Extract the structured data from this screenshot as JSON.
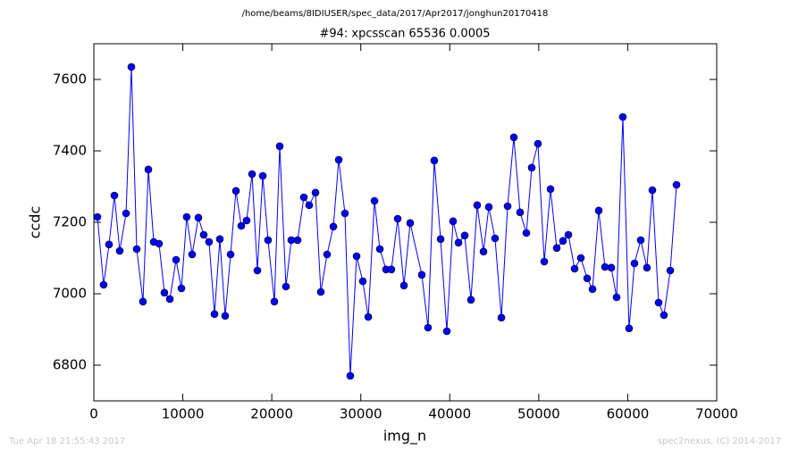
{
  "chart_data": {
    "type": "line",
    "suptitle": "/home/beams/8IDIUSER/spec_data/2017/Apr2017/jonghun20170418",
    "title": "#94: xpcsscan 65536 0.0005",
    "xlabel": "img_n",
    "ylabel": "ccdc",
    "footer_left": "Tue Apr 18 21:55:43 2017",
    "footer_right": "spec2nexus, (C) 2014-2017",
    "x": [
      400,
      1100,
      1710,
      2310,
      2910,
      3620,
      4220,
      4820,
      5520,
      6130,
      6730,
      7330,
      7930,
      8540,
      9240,
      9840,
      10440,
      11050,
      11750,
      12350,
      12950,
      13560,
      14160,
      14760,
      15370,
      15970,
      16570,
      17170,
      17780,
      18380,
      18980,
      19580,
      20290,
      20890,
      21590,
      22190,
      22900,
      23600,
      24200,
      24910,
      25510,
      26210,
      26920,
      27520,
      28220,
      28820,
      29530,
      30230,
      30840,
      31540,
      32140,
      32840,
      33440,
      34150,
      34850,
      35550,
      36860,
      37560,
      38260,
      38970,
      39670,
      40370,
      40980,
      41680,
      42380,
      43080,
      43790,
      44390,
      45090,
      45800,
      46500,
      47200,
      47900,
      48610,
      49210,
      49910,
      50620,
      51320,
      52020,
      52730,
      53330,
      54030,
      54730,
      55440,
      56040,
      56740,
      57440,
      58150,
      58750,
      59450,
      60150,
      60760,
      61460,
      62160,
      62770,
      63470,
      64070,
      64780,
      65480
    ],
    "series": [
      {
        "name": "ccdc",
        "color": "#0000ff",
        "values": [
          7215,
          7025,
          7138,
          7275,
          7120,
          7225,
          7635,
          7125,
          6978,
          7348,
          7145,
          7140,
          7003,
          6985,
          7095,
          7015,
          7215,
          7110,
          7213,
          7165,
          7145,
          6943,
          7153,
          6938,
          7110,
          7288,
          7190,
          7205,
          7335,
          7065,
          7330,
          7150,
          6978,
          7413,
          7020,
          7150,
          7150,
          7270,
          7248,
          7283,
          7005,
          7110,
          7188,
          7375,
          7225,
          6770,
          7105,
          7035,
          6935,
          7260,
          7125,
          7068,
          7068,
          7210,
          7023,
          7198,
          7053,
          6905,
          7373,
          7153,
          6895,
          7203,
          7143,
          7163,
          6983,
          7248,
          7118,
          7243,
          7155,
          6933,
          7245,
          7438,
          7228,
          7170,
          7353,
          7420,
          7090,
          7293,
          7128,
          7148,
          7165,
          7070,
          7100,
          7043,
          7013,
          7233,
          7075,
          7073,
          6990,
          7495,
          6903,
          7085,
          7150,
          7073,
          7290,
          6975,
          6940,
          7065,
          7305
        ]
      }
    ],
    "xlim": [
      0,
      70000
    ],
    "xticks": [
      0,
      10000,
      20000,
      30000,
      40000,
      50000,
      60000,
      70000
    ],
    "ylim": [
      6700,
      7700
    ],
    "yticks": [
      6800,
      7000,
      7200,
      7400,
      7600
    ],
    "grid": false
  }
}
